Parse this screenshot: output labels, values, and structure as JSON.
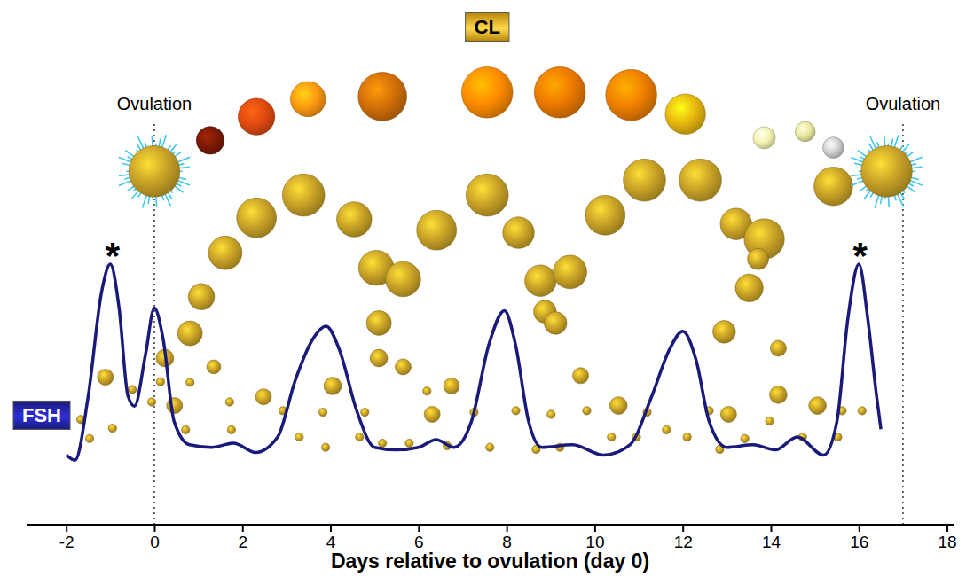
{
  "chart_data": {
    "type": "line",
    "x_label": "Days relative to ovulation (day 0)",
    "xlim": [
      -2.9,
      18.15
    ],
    "xticks": [
      -2,
      0,
      2,
      4,
      6,
      8,
      10,
      12,
      14,
      16,
      18
    ],
    "ylim": [
      0,
      100
    ],
    "tick_labels": "x",
    "grid": false,
    "series": [
      {
        "name": "FSH",
        "type": "line",
        "color": "#1a1a7a",
        "line_style": "solid",
        "x": [
          -2.0,
          -1.8,
          -1.5,
          -1.2,
          -1.0,
          -0.8,
          -0.6,
          -0.45,
          -0.2,
          0.0,
          0.2,
          0.45,
          0.8,
          1.3,
          1.8,
          2.3,
          2.8,
          3.2,
          3.6,
          3.9,
          4.2,
          4.6,
          5.0,
          5.5,
          6.0,
          6.4,
          6.8,
          7.2,
          7.6,
          7.95,
          8.2,
          8.5,
          8.8,
          9.5,
          10.2,
          10.8,
          11.3,
          11.7,
          12.0,
          12.3,
          12.6,
          13.0,
          13.6,
          14.1,
          14.6,
          15.2,
          15.5,
          15.75,
          16.0,
          16.2,
          16.4,
          16.5
        ],
        "values": [
          13.5,
          12.5,
          25,
          45,
          50.5,
          42,
          25,
          23,
          33,
          42,
          36,
          20,
          15.5,
          15,
          15.8,
          14,
          17,
          28,
          36,
          38.5,
          34,
          22,
          15,
          14.5,
          15,
          16.5,
          15,
          20,
          35,
          41.5,
          35,
          20,
          15,
          15.5,
          13.5,
          15.5,
          25,
          34,
          37.5,
          32,
          20,
          15,
          15.5,
          14.5,
          17,
          13.5,
          20,
          40,
          50.5,
          40,
          25,
          18.5
        ]
      },
      {
        "name": "CL",
        "type": "bubble",
        "marker": "circle",
        "colors": [
          "#7a1a05",
          "#e04a10",
          "#ff9a10",
          "#d27008",
          "#ff8c00",
          "#ee7a00",
          "#f08000",
          "#e8b810",
          "#f4f4b0",
          "#e8e8a0",
          "#d0d0d0"
        ],
        "x": [
          1.27,
          2.32,
          3.49,
          5.18,
          7.56,
          9.21,
          10.83,
          12.06,
          13.85,
          14.78,
          15.42
        ],
        "values": [
          74.5,
          79.1,
          82.5,
          83.0,
          83.8,
          83.8,
          83.3,
          79.6,
          75.0,
          76.2,
          73.1
        ],
        "size": [
          5.4,
          7.1,
          6.8,
          9.4,
          9.9,
          9.9,
          9.9,
          7.8,
          4.3,
          3.9,
          4.1
        ]
      },
      {
        "type": "bubble",
        "marker": "circle",
        "color": "#c9a227",
        "x": [
          0.24,
          0.81,
          1.07,
          1.61,
          2.32,
          3.39,
          4.54,
          5.04,
          5.65,
          5.1,
          5.1,
          6.41,
          7.56,
          8.27,
          8.77,
          9.44,
          8.87,
          9.11,
          10.24,
          11.13,
          12.4,
          13.21,
          13.85,
          13.71,
          13.51,
          12.94,
          14.17,
          15.42,
          -1.11,
          0.46,
          1.35,
          2.48,
          4.05,
          5.65,
          6.31,
          6.75,
          9.68,
          10.54,
          13.04,
          14.17,
          15.06,
          -1.67,
          -1.47,
          -0.95,
          -0.5,
          -0.06,
          0.14,
          0.81,
          0.71,
          1.71,
          1.75,
          2.92,
          3.29,
          3.83,
          3.89,
          4.66,
          4.78,
          5.18,
          5.79,
          6.19,
          6.65,
          7.26,
          7.62,
          8.21,
          8.67,
          9.01,
          9.21,
          9.82,
          10.38,
          10.95,
          11.19,
          11.63,
          12.1,
          12.6,
          12.84,
          13.41,
          13.97,
          14.72,
          15.52,
          15.62,
          16.07
        ],
        "values": [
          32.3,
          37.1,
          44.2,
          52.7,
          59.5,
          63.9,
          59.2,
          49.8,
          47.6,
          39.1,
          32.3,
          57.1,
          63.9,
          56.6,
          47.3,
          49.0,
          41.3,
          39.1,
          60.0,
          66.8,
          66.8,
          58.3,
          55.4,
          51.5,
          45.9,
          37.4,
          34.2,
          65.6,
          28.6,
          23.1,
          30.6,
          24.8,
          26.9,
          30.6,
          21.4,
          26.9,
          28.9,
          23.1,
          21.4,
          25.2,
          23.1,
          20.4,
          16.7,
          18.7,
          26.2,
          23.8,
          27.7,
          27.6,
          18.4,
          23.8,
          18.4,
          22.1,
          17.0,
          21.8,
          15.0,
          17.0,
          21.8,
          15.8,
          15.8,
          25.9,
          15.3,
          21.8,
          15.0,
          22.1,
          14.6,
          21.4,
          15.0,
          22.1,
          17.0,
          17.0,
          21.8,
          18.4,
          17.0,
          22.1,
          14.6,
          16.7,
          20.1,
          17.0,
          17.0,
          22.1,
          22.1
        ],
        "size": [
          3.4,
          4.8,
          5.1,
          6.5,
          7.7,
          8.2,
          6.8,
          6.8,
          6.8,
          4.8,
          3.4,
          7.7,
          8.2,
          6.1,
          6.1,
          6.5,
          4.4,
          4.4,
          7.7,
          8.2,
          8.2,
          6.1,
          7.8,
          4.1,
          5.4,
          4.4,
          3.1,
          7.5,
          3.1,
          3.1,
          2.7,
          3.1,
          3.4,
          3.1,
          3.1,
          3.1,
          3.1,
          3.4,
          3.1,
          3.4,
          3.4,
          1.6,
          1.6,
          1.6,
          1.6,
          1.6,
          1.6,
          1.6,
          1.6,
          1.6,
          1.6,
          1.6,
          1.6,
          1.6,
          1.6,
          1.6,
          1.6,
          1.6,
          1.6,
          1.6,
          1.6,
          1.6,
          1.6,
          1.6,
          1.6,
          1.6,
          1.6,
          1.6,
          1.6,
          1.6,
          1.6,
          1.6,
          1.6,
          1.6,
          1.6,
          1.6,
          1.6,
          1.6,
          1.6,
          1.6,
          1.6
        ]
      },
      {
        "type": "bubble",
        "marker": "burst",
        "color": "#c9a227",
        "x": [
          0.0,
          16.63
        ],
        "values": [
          68.5,
          68.5
        ],
        "size": [
          9.9,
          9.9
        ]
      }
    ],
    "annotations": [
      {
        "text": "Ovulation",
        "x": 0,
        "y": 81.6,
        "line_style": "dotted"
      },
      {
        "text": "Ovulation",
        "x": 17,
        "y": 81.6,
        "line_style": "dotted"
      },
      {
        "text": "*",
        "x": -0.95,
        "y": 53.7
      },
      {
        "text": "*",
        "x": 16.03,
        "y": 53.7
      }
    ]
  }
}
